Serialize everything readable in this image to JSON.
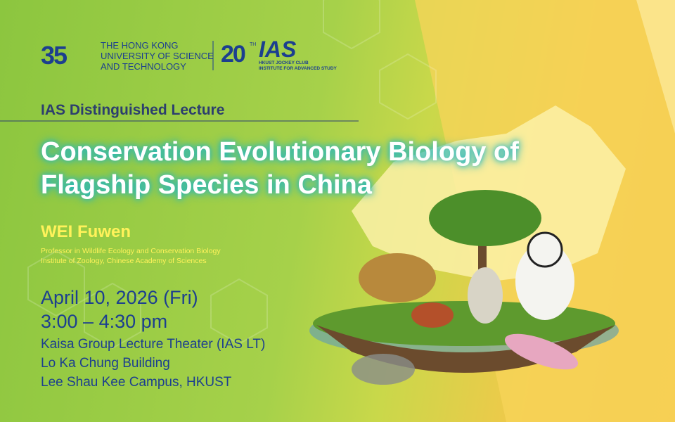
{
  "logo": {
    "anniversary": "35",
    "university": [
      "THE HONG KONG",
      "UNIVERSITY OF SCIENCE",
      "AND TECHNOLOGY"
    ],
    "ias_anniversary": "20",
    "ias_anniversary_suffix": "TH",
    "ias": "IAS",
    "ias_name": [
      "HKUST JOCKEY CLUB",
      "INSTITUTE FOR ADVANCED STUDY"
    ]
  },
  "series": "IAS Distinguished Lecture",
  "title": [
    "Conservation Evolutionary Biology of",
    "Flagship Species in China"
  ],
  "speaker": {
    "name": "WEI Fuwen",
    "affiliation": [
      "Professor in Wildlife Ecology and Conservation Biology",
      "Institute of Zoology, Chinese Academy of Sciences"
    ]
  },
  "date": "April 10, 2026 (Fri)",
  "time": "3:00 – 4:30 pm",
  "venue": [
    "Kaisa Group Lecture Theater (IAS LT)",
    "Lo Ka Chung Building",
    "Lee Shau Kee Campus, HKUST"
  ]
}
